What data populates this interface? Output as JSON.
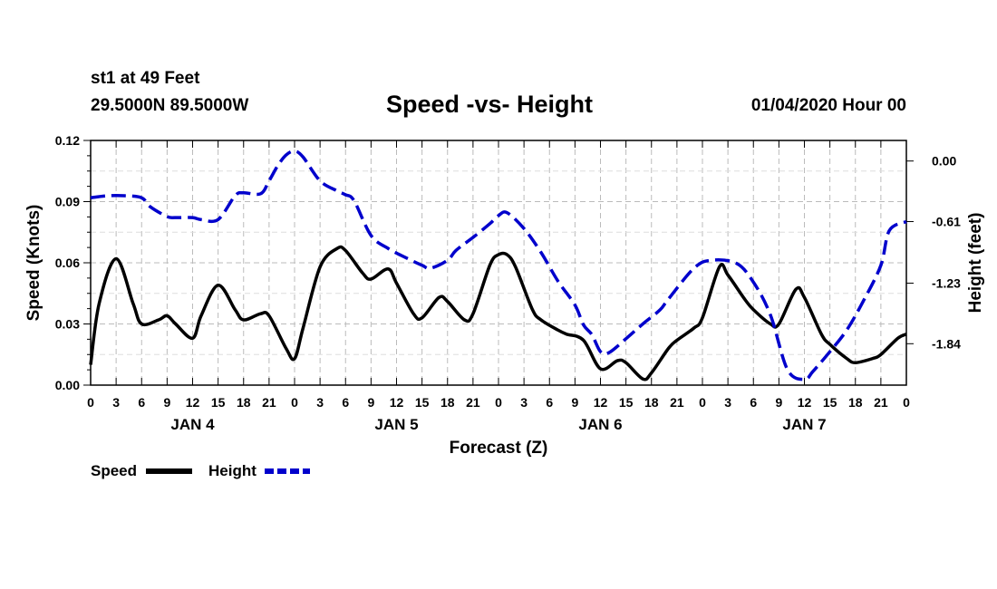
{
  "header": {
    "station": "st1 at 49 Feet",
    "coords": "29.5000N 89.5000W",
    "title": "Speed -vs- Height",
    "datetime": "01/04/2020 Hour 00"
  },
  "colors": {
    "speed": "#000000",
    "height": "#0000cc",
    "grid": "#bbbbbb"
  },
  "chart_data": {
    "type": "line",
    "title": "Speed -vs- Height",
    "xlabel": "Forecast (Z)",
    "ylabel": "Speed (Knots)",
    "y2label": "Height (feet)",
    "x_tick_labels": [
      "0",
      "3",
      "6",
      "9",
      "12",
      "15",
      "18",
      "21",
      "0",
      "3",
      "6",
      "9",
      "12",
      "15",
      "18",
      "21",
      "0",
      "3",
      "6",
      "9",
      "12",
      "15",
      "18",
      "21",
      "0",
      "3",
      "6",
      "9",
      "12",
      "15",
      "18",
      "21",
      "0"
    ],
    "day_labels": [
      "JAN 4",
      "JAN 5",
      "JAN 6",
      "JAN 7"
    ],
    "x_range_hours": [
      0,
      96
    ],
    "ylim": [
      0,
      0.12
    ],
    "y_ticks": [
      "0.00",
      "0.03",
      "0.06",
      "0.09",
      "0.12"
    ],
    "y2lim": [
      -2.257,
      0.207
    ],
    "y2_ticks": [
      "0.00",
      "-0.61",
      "-1.23",
      "-1.84"
    ],
    "grid": true,
    "legend": [
      {
        "name": "Speed",
        "style": "solid"
      },
      {
        "name": "Height",
        "style": "dashed"
      }
    ],
    "series": [
      {
        "name": "Speed",
        "axis": "left",
        "style": "solid",
        "x": [
          0,
          1,
          3,
          5,
          6,
          8,
          9,
          10,
          12,
          13,
          15,
          17,
          18,
          20,
          21,
          23,
          24,
          25,
          27,
          29,
          30,
          32,
          33,
          35,
          36,
          38,
          39,
          41,
          42,
          44,
          45,
          47,
          48,
          49,
          50,
          52,
          53,
          55,
          56,
          58,
          60,
          62,
          63,
          65,
          66,
          68,
          69,
          71,
          72,
          74,
          75,
          77,
          78,
          80,
          81,
          83,
          84,
          86,
          87,
          89,
          90,
          92,
          93,
          95,
          96
        ],
        "values": [
          0.01,
          0.04,
          0.062,
          0.04,
          0.03,
          0.032,
          0.034,
          0.03,
          0.023,
          0.034,
          0.049,
          0.037,
          0.032,
          0.035,
          0.034,
          0.018,
          0.013,
          0.028,
          0.058,
          0.067,
          0.066,
          0.055,
          0.052,
          0.057,
          0.05,
          0.035,
          0.033,
          0.043,
          0.041,
          0.032,
          0.035,
          0.059,
          0.064,
          0.064,
          0.058,
          0.037,
          0.032,
          0.027,
          0.025,
          0.022,
          0.008,
          0.012,
          0.011,
          0.003,
          0.006,
          0.018,
          0.022,
          0.028,
          0.033,
          0.058,
          0.054,
          0.042,
          0.037,
          0.03,
          0.03,
          0.047,
          0.043,
          0.025,
          0.02,
          0.013,
          0.011,
          0.013,
          0.015,
          0.023,
          0.025
        ]
      },
      {
        "name": "Height",
        "axis": "right",
        "style": "dashed",
        "x": [
          0,
          2,
          4,
          6,
          7,
          9,
          10,
          12,
          13,
          15,
          17,
          18,
          20,
          21,
          22,
          23,
          24,
          25,
          27,
          29,
          30,
          31,
          33,
          35,
          37,
          39,
          40,
          42,
          43,
          45,
          47,
          48,
          49,
          51,
          53,
          55,
          57,
          58,
          59,
          60,
          61,
          63,
          65,
          67,
          68,
          71,
          73,
          76,
          78,
          80,
          82,
          84,
          85,
          87,
          89,
          91,
          93,
          94,
          96
        ],
        "values": [
          -0.37,
          -0.35,
          -0.35,
          -0.37,
          -0.46,
          -0.56,
          -0.57,
          -0.57,
          -0.59,
          -0.59,
          -0.35,
          -0.32,
          -0.33,
          -0.2,
          -0.05,
          0.06,
          0.1,
          0.04,
          -0.2,
          -0.3,
          -0.34,
          -0.4,
          -0.75,
          -0.88,
          -0.97,
          -1.05,
          -1.08,
          -1.0,
          -0.9,
          -0.77,
          -0.63,
          -0.55,
          -0.52,
          -0.68,
          -0.92,
          -1.21,
          -1.45,
          -1.65,
          -1.75,
          -1.92,
          -1.93,
          -1.79,
          -1.64,
          -1.5,
          -1.39,
          -1.08,
          -1.0,
          -1.03,
          -1.22,
          -1.55,
          -2.1,
          -2.2,
          -2.12,
          -1.92,
          -1.7,
          -1.4,
          -1.05,
          -0.7,
          -0.61
        ]
      }
    ]
  }
}
